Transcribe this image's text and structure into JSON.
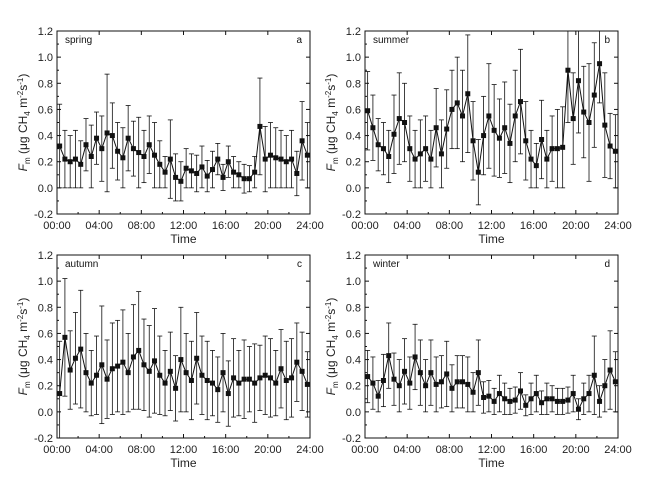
{
  "chart_data": [
    {
      "type": "line",
      "panel": "spring",
      "letter": "a",
      "xlabel": "Time",
      "ylabel": "F_m (μg CH4 m^-2 s^-1)",
      "x_ticks": [
        "00:00",
        "04:00",
        "08:00",
        "12:00",
        "16:00",
        "20:00",
        "24:00"
      ],
      "y_ticks": [
        "-0.2",
        "0.0",
        "0.2",
        "0.4",
        "0.6",
        "0.8",
        "1.0",
        "1.2"
      ],
      "xlim_hours": [
        0,
        24
      ],
      "ylim": [
        -0.2,
        1.2
      ],
      "x_hours": [
        0.25,
        0.75,
        1.25,
        1.75,
        2.25,
        2.75,
        3.25,
        3.75,
        4.25,
        4.75,
        5.25,
        5.75,
        6.25,
        6.75,
        7.25,
        7.75,
        8.25,
        8.75,
        9.25,
        9.75,
        10.25,
        10.75,
        11.25,
        11.75,
        12.25,
        12.75,
        13.25,
        13.75,
        14.25,
        14.75,
        15.25,
        15.75,
        16.25,
        16.75,
        17.25,
        17.75,
        18.25,
        18.75,
        19.25,
        19.75,
        20.25,
        20.75,
        21.25,
        21.75,
        22.25,
        22.75,
        23.25,
        23.75
      ],
      "values": [
        0.32,
        0.22,
        0.2,
        0.22,
        0.18,
        0.33,
        0.24,
        0.38,
        0.3,
        0.42,
        0.4,
        0.28,
        0.23,
        0.38,
        0.3,
        0.27,
        0.24,
        0.33,
        0.25,
        0.18,
        0.12,
        0.22,
        0.08,
        0.05,
        0.15,
        0.13,
        0.11,
        0.16,
        0.09,
        0.14,
        0.22,
        0.08,
        0.2,
        0.12,
        0.1,
        0.07,
        0.07,
        0.12,
        0.47,
        0.22,
        0.25,
        0.23,
        0.22,
        0.2,
        0.22,
        0.11,
        0.36,
        0.25
      ],
      "errors": [
        0.32,
        0.22,
        0.2,
        0.22,
        0.18,
        0.2,
        0.24,
        0.2,
        0.25,
        0.45,
        0.25,
        0.22,
        0.23,
        0.25,
        0.21,
        0.27,
        0.2,
        0.22,
        0.25,
        0.18,
        0.12,
        0.3,
        0.18,
        0.15,
        0.15,
        0.13,
        0.14,
        0.16,
        0.12,
        0.14,
        0.12,
        0.1,
        0.12,
        0.12,
        0.1,
        0.11,
        0.1,
        0.12,
        0.37,
        0.25,
        0.25,
        0.23,
        0.22,
        0.2,
        0.22,
        0.17,
        0.3,
        0.25
      ]
    },
    {
      "type": "line",
      "panel": "summer",
      "letter": "b",
      "xlabel": "Time",
      "ylabel": "F_m (μg CH4 m^-2 s^-1)",
      "x_ticks": [
        "00:00",
        "04:00",
        "08:00",
        "12:00",
        "16:00",
        "20:00",
        "24:00"
      ],
      "y_ticks": [
        "-0.2",
        "0.0",
        "0.2",
        "0.4",
        "0.6",
        "0.8",
        "1.0",
        "1.2"
      ],
      "xlim_hours": [
        0,
        24
      ],
      "ylim": [
        -0.2,
        1.2
      ],
      "x_hours": [
        0.25,
        0.75,
        1.25,
        1.75,
        2.25,
        2.75,
        3.25,
        3.75,
        4.25,
        4.75,
        5.25,
        5.75,
        6.25,
        6.75,
        7.25,
        7.75,
        8.25,
        8.75,
        9.25,
        9.75,
        10.25,
        10.75,
        11.25,
        11.75,
        12.25,
        12.75,
        13.25,
        13.75,
        14.25,
        14.75,
        15.25,
        15.75,
        16.25,
        16.75,
        17.25,
        17.75,
        18.25,
        18.75,
        19.25,
        19.75,
        20.25,
        20.75,
        21.25,
        21.75,
        22.25,
        22.75,
        23.25,
        23.75
      ],
      "values": [
        0.59,
        0.46,
        0.33,
        0.3,
        0.24,
        0.41,
        0.53,
        0.5,
        0.3,
        0.22,
        0.26,
        0.3,
        0.22,
        0.46,
        0.26,
        0.45,
        0.6,
        0.65,
        0.55,
        0.72,
        0.36,
        0.12,
        0.4,
        0.55,
        0.44,
        0.38,
        0.46,
        0.34,
        0.55,
        0.66,
        0.36,
        0.22,
        0.17,
        0.37,
        0.22,
        0.3,
        0.3,
        0.31,
        0.9,
        0.53,
        0.82,
        0.58,
        0.5,
        0.71,
        0.95,
        0.48,
        0.32,
        0.28
      ],
      "errors": [
        0.3,
        0.25,
        0.2,
        0.2,
        0.2,
        0.3,
        0.35,
        0.3,
        0.25,
        0.22,
        0.26,
        0.25,
        0.22,
        0.3,
        0.26,
        0.3,
        0.3,
        0.35,
        0.35,
        0.45,
        0.3,
        0.25,
        0.3,
        0.4,
        0.35,
        0.3,
        0.35,
        0.3,
        0.35,
        0.4,
        0.3,
        0.22,
        0.17,
        0.3,
        0.22,
        0.25,
        0.3,
        0.31,
        0.4,
        0.35,
        0.4,
        0.35,
        0.45,
        0.4,
        0.3,
        0.4,
        0.25,
        0.28
      ]
    },
    {
      "type": "line",
      "panel": "autumn",
      "letter": "c",
      "xlabel": "Time",
      "ylabel": "F_m (μg CH4 m^-2 s^-1)",
      "x_ticks": [
        "00:00",
        "04:00",
        "08:00",
        "12:00",
        "16:00",
        "20:00",
        "24:00"
      ],
      "y_ticks": [
        "-0.2",
        "0.0",
        "0.2",
        "0.4",
        "0.6",
        "0.8",
        "1.0",
        "1.2"
      ],
      "xlim_hours": [
        0,
        24
      ],
      "ylim": [
        -0.2,
        1.2
      ],
      "x_hours": [
        0.25,
        0.75,
        1.25,
        1.75,
        2.25,
        2.75,
        3.25,
        3.75,
        4.25,
        4.75,
        5.25,
        5.75,
        6.25,
        6.75,
        7.25,
        7.75,
        8.25,
        8.75,
        9.25,
        9.75,
        10.25,
        10.75,
        11.25,
        11.75,
        12.25,
        12.75,
        13.25,
        13.75,
        14.25,
        14.75,
        15.25,
        15.75,
        16.25,
        16.75,
        17.25,
        17.75,
        18.25,
        18.75,
        19.25,
        19.75,
        20.25,
        20.75,
        21.25,
        21.75,
        22.25,
        22.75,
        23.25,
        23.75
      ],
      "values": [
        0.14,
        0.57,
        0.32,
        0.41,
        0.48,
        0.3,
        0.22,
        0.28,
        0.36,
        0.25,
        0.33,
        0.35,
        0.38,
        0.3,
        0.42,
        0.47,
        0.36,
        0.31,
        0.39,
        0.28,
        0.22,
        0.31,
        0.18,
        0.4,
        0.3,
        0.24,
        0.41,
        0.28,
        0.24,
        0.22,
        0.17,
        0.3,
        0.14,
        0.26,
        0.22,
        0.25,
        0.25,
        0.22,
        0.26,
        0.28,
        0.26,
        0.22,
        0.33,
        0.24,
        0.26,
        0.38,
        0.31,
        0.21
      ],
      "errors": [
        0.4,
        0.45,
        0.3,
        0.35,
        0.45,
        0.3,
        0.25,
        0.3,
        0.45,
        0.3,
        0.35,
        0.35,
        0.4,
        0.3,
        0.4,
        0.45,
        0.35,
        0.35,
        0.4,
        0.3,
        0.25,
        0.3,
        0.25,
        0.4,
        0.3,
        0.3,
        0.35,
        0.3,
        0.3,
        0.25,
        0.25,
        0.3,
        0.25,
        0.3,
        0.25,
        0.3,
        0.25,
        0.3,
        0.25,
        0.3,
        0.3,
        0.25,
        0.3,
        0.3,
        0.3,
        0.3,
        0.3,
        0.25
      ]
    },
    {
      "type": "line",
      "panel": "winter",
      "letter": "d",
      "xlabel": "Time",
      "ylabel": "F_m (μg CH4 m^-2 s^-1)",
      "x_ticks": [
        "00:00",
        "04:00",
        "08:00",
        "12:00",
        "16:00",
        "20:00",
        "24:00"
      ],
      "y_ticks": [
        "-0.2",
        "0.0",
        "0.2",
        "0.4",
        "0.6",
        "0.8",
        "1.0",
        "1.2"
      ],
      "xlim_hours": [
        0,
        24
      ],
      "ylim": [
        -0.2,
        1.2
      ],
      "x_hours": [
        0.25,
        0.75,
        1.25,
        1.75,
        2.25,
        2.75,
        3.25,
        3.75,
        4.25,
        4.75,
        5.25,
        5.75,
        6.25,
        6.75,
        7.25,
        7.75,
        8.25,
        8.75,
        9.25,
        9.75,
        10.25,
        10.75,
        11.25,
        11.75,
        12.25,
        12.75,
        13.25,
        13.75,
        14.25,
        14.75,
        15.25,
        15.75,
        16.25,
        16.75,
        17.25,
        17.75,
        18.25,
        18.75,
        19.25,
        19.75,
        20.25,
        20.75,
        21.25,
        21.75,
        22.25,
        22.75,
        23.25,
        23.75
      ],
      "values": [
        0.27,
        0.22,
        0.12,
        0.24,
        0.43,
        0.25,
        0.2,
        0.31,
        0.22,
        0.42,
        0.3,
        0.2,
        0.3,
        0.21,
        0.23,
        0.29,
        0.18,
        0.23,
        0.23,
        0.21,
        0.15,
        0.3,
        0.11,
        0.12,
        0.08,
        0.14,
        0.1,
        0.08,
        0.09,
        0.16,
        0.05,
        0.1,
        0.14,
        0.07,
        0.1,
        0.1,
        0.08,
        0.08,
        0.09,
        0.14,
        0.02,
        0.1,
        0.14,
        0.28,
        0.08,
        0.2,
        0.32,
        0.23
      ],
      "errors": [
        0.2,
        0.2,
        0.12,
        0.2,
        0.25,
        0.2,
        0.2,
        0.25,
        0.2,
        0.25,
        0.25,
        0.2,
        0.25,
        0.21,
        0.2,
        0.25,
        0.18,
        0.2,
        0.2,
        0.21,
        0.15,
        0.25,
        0.12,
        0.12,
        0.1,
        0.14,
        0.12,
        0.1,
        0.1,
        0.14,
        0.08,
        0.12,
        0.14,
        0.09,
        0.12,
        0.1,
        0.1,
        0.1,
        0.1,
        0.14,
        0.08,
        0.12,
        0.14,
        0.3,
        0.12,
        0.2,
        0.3,
        0.23
      ]
    }
  ]
}
